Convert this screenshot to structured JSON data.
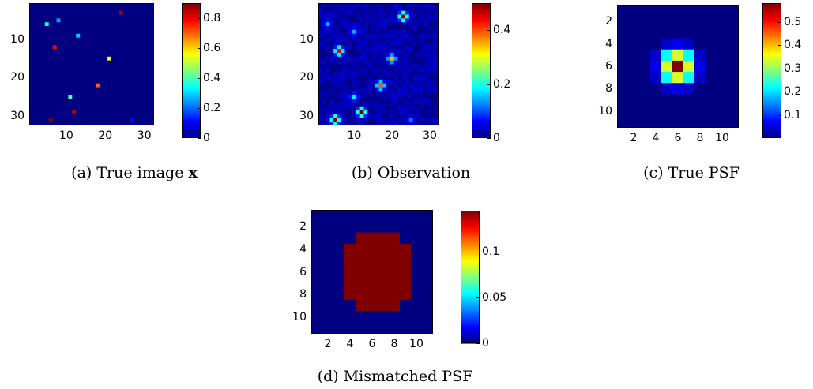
{
  "colors": {
    "cmap": "jet",
    "background": "#ffffff",
    "frame": "#000000"
  },
  "captions": {
    "a_prefix": "(a)  True image ",
    "a_symbol": "x",
    "b": "(b)  Observation",
    "c": "(c)  True PSF",
    "d": "(d)  Mismatched PSF"
  },
  "chart_data": [
    {
      "type": "heatmap",
      "panel_id": "a",
      "title": "",
      "xlabel": "",
      "ylabel": "",
      "grid_size": [
        32,
        32
      ],
      "xticks": [
        "10",
        "20",
        "30"
      ],
      "yticks": [
        "10",
        "20",
        "30"
      ],
      "colorbar": {
        "range": [
          0,
          0.9
        ],
        "ticks": [
          "0",
          "0.2",
          "0.4",
          "0.6",
          "0.8"
        ]
      },
      "peaks": [
        {
          "row": 3,
          "col": 24,
          "value": 0.85
        },
        {
          "row": 5,
          "col": 8,
          "value": 0.25
        },
        {
          "row": 6,
          "col": 5,
          "value": 0.35
        },
        {
          "row": 9,
          "col": 13,
          "value": 0.3
        },
        {
          "row": 12,
          "col": 7,
          "value": 0.8
        },
        {
          "row": 15,
          "col": 21,
          "value": 0.55
        },
        {
          "row": 22,
          "col": 18,
          "value": 0.7
        },
        {
          "row": 25,
          "col": 11,
          "value": 0.4
        },
        {
          "row": 29,
          "col": 12,
          "value": 0.85
        },
        {
          "row": 31,
          "col": 6,
          "value": 0.9
        },
        {
          "row": 31,
          "col": 27,
          "value": 0.12
        }
      ]
    },
    {
      "type": "heatmap",
      "panel_id": "b",
      "title": "",
      "xlabel": "",
      "ylabel": "",
      "grid_size": [
        32,
        32
      ],
      "xticks": [
        "10",
        "20",
        "30"
      ],
      "yticks": [
        "10",
        "20",
        "30"
      ],
      "colorbar": {
        "range": [
          0,
          0.5
        ],
        "ticks": [
          "0",
          "0.2",
          "0.4"
        ]
      },
      "noise_level": 0.02,
      "blobs": [
        {
          "row": 4,
          "col": 23,
          "value": 0.5
        },
        {
          "row": 6,
          "col": 3,
          "value": 0.15
        },
        {
          "row": 8,
          "col": 10,
          "value": 0.15
        },
        {
          "row": 13,
          "col": 6,
          "value": 0.45
        },
        {
          "row": 15,
          "col": 20,
          "value": 0.35
        },
        {
          "row": 22,
          "col": 17,
          "value": 0.4
        },
        {
          "row": 25,
          "col": 10,
          "value": 0.18
        },
        {
          "row": 29,
          "col": 12,
          "value": 0.5
        },
        {
          "row": 31,
          "col": 5,
          "value": 0.5
        },
        {
          "row": 31,
          "col": 25,
          "value": 0.12
        }
      ]
    },
    {
      "type": "heatmap",
      "panel_id": "c",
      "title": "",
      "xlabel": "",
      "ylabel": "",
      "grid_size": [
        11,
        11
      ],
      "xticks": [
        "2",
        "4",
        "6",
        "8",
        "10"
      ],
      "yticks": [
        "2",
        "4",
        "6",
        "8",
        "10"
      ],
      "colorbar": {
        "range": [
          0,
          0.58
        ],
        "ticks": [
          "0.1",
          "0.2",
          "0.3",
          "0.4",
          "0.5"
        ]
      },
      "values": [
        [
          0,
          0,
          0,
          0,
          0,
          0,
          0,
          0,
          0,
          0,
          0
        ],
        [
          0,
          0,
          0,
          0,
          0,
          0,
          0,
          0,
          0,
          0,
          0
        ],
        [
          0,
          0,
          0,
          0,
          0,
          0,
          0,
          0,
          0,
          0,
          0
        ],
        [
          0,
          0,
          0,
          0,
          0.04,
          0.06,
          0.04,
          0,
          0,
          0,
          0
        ],
        [
          0,
          0,
          0,
          0.04,
          0.22,
          0.34,
          0.22,
          0.04,
          0,
          0,
          0
        ],
        [
          0,
          0,
          0,
          0.06,
          0.34,
          0.58,
          0.34,
          0.06,
          0,
          0,
          0
        ],
        [
          0,
          0,
          0,
          0.04,
          0.22,
          0.34,
          0.22,
          0.04,
          0,
          0,
          0
        ],
        [
          0,
          0,
          0,
          0,
          0.04,
          0.06,
          0.04,
          0,
          0,
          0,
          0
        ],
        [
          0,
          0,
          0,
          0,
          0,
          0,
          0,
          0,
          0,
          0,
          0
        ],
        [
          0,
          0,
          0,
          0,
          0,
          0,
          0,
          0,
          0,
          0,
          0
        ],
        [
          0,
          0,
          0,
          0,
          0,
          0,
          0,
          0,
          0,
          0,
          0
        ]
      ]
    },
    {
      "type": "heatmap",
      "panel_id": "d",
      "title": "",
      "xlabel": "",
      "ylabel": "",
      "grid_size": [
        11,
        11
      ],
      "xticks": [
        "2",
        "4",
        "6",
        "8",
        "10"
      ],
      "yticks": [
        "2",
        "4",
        "6",
        "8",
        "10"
      ],
      "colorbar": {
        "range": [
          0,
          0.145
        ],
        "ticks": [
          "0",
          "0.05",
          "0.1"
        ]
      },
      "values": [
        [
          0,
          0,
          0,
          0,
          0,
          0,
          0,
          0,
          0,
          0,
          0
        ],
        [
          0,
          0,
          0,
          0,
          0,
          0,
          0,
          0,
          0,
          0,
          0
        ],
        [
          0,
          0,
          0,
          0,
          0.145,
          0.145,
          0.145,
          0.145,
          0,
          0,
          0
        ],
        [
          0,
          0,
          0,
          0.145,
          0.145,
          0.145,
          0.145,
          0.145,
          0.145,
          0,
          0
        ],
        [
          0,
          0,
          0,
          0.145,
          0.145,
          0.145,
          0.145,
          0.145,
          0.145,
          0,
          0
        ],
        [
          0,
          0,
          0,
          0.145,
          0.145,
          0.145,
          0.145,
          0.145,
          0.145,
          0,
          0
        ],
        [
          0,
          0,
          0,
          0.145,
          0.145,
          0.145,
          0.145,
          0.145,
          0.145,
          0,
          0
        ],
        [
          0,
          0,
          0,
          0.145,
          0.145,
          0.145,
          0.145,
          0.145,
          0.145,
          0,
          0
        ],
        [
          0,
          0,
          0,
          0,
          0.145,
          0.145,
          0.145,
          0.145,
          0,
          0,
          0
        ],
        [
          0,
          0,
          0,
          0,
          0,
          0,
          0,
          0,
          0,
          0,
          0
        ],
        [
          0,
          0,
          0,
          0,
          0,
          0,
          0,
          0,
          0,
          0,
          0
        ]
      ]
    }
  ]
}
